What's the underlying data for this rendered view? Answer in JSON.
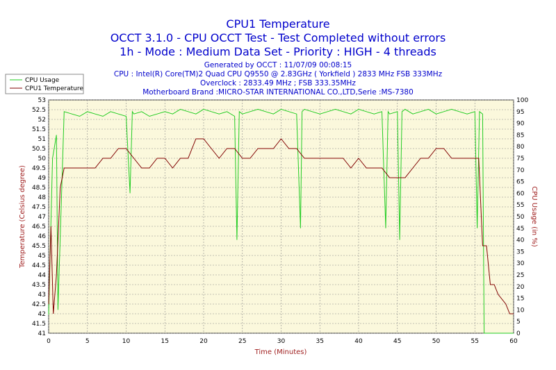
{
  "header": {
    "title": "CPU1 Temperature",
    "line2": "OCCT 3.1.0 - CPU OCCT Test - Test Completed without errors",
    "line3": "1h - Mode : Medium Data Set - Priority : HIGH - 4 threads"
  },
  "info": {
    "generated": "Generated by OCCT : 11/07/09 00:08:15",
    "cpu": "CPU : Intel(R) Core(TM)2 Quad CPU Q9550 @ 2.83GHz ( Yorkfield ) 2833 MHz FSB 333MHz",
    "overclock": "Overclock : 2833.49 MHz ; FSB 333.35MHz",
    "motherboard": "Motherboard Brand :MICRO-STAR INTERNATIONAL CO.,LTD,Serie :MS-7380"
  },
  "colors": {
    "plot_background": "#fbf8dc",
    "cpu_usage": "#22cc22",
    "cpu_temp": "#800000",
    "title": "#0000cc",
    "axis_title": "#a02020"
  },
  "chart_data": {
    "type": "line",
    "title": "CPU1 Temperature",
    "xlabel": "Time (Minutes)",
    "ylabel_left": "Temperature (Celsius degree)",
    "ylabel_right": "CPU Usage (in %)",
    "xlim": [
      0,
      60
    ],
    "ylim_left": [
      41,
      53
    ],
    "ylim_right": [
      0,
      100
    ],
    "x_ticks": [
      0,
      5,
      10,
      15,
      20,
      25,
      30,
      35,
      40,
      45,
      50,
      55,
      60
    ],
    "y_left_ticks": [
      "41",
      "41.5",
      "42",
      "42.5",
      "43",
      "43.5",
      "44",
      "44.5",
      "45",
      "45.5",
      "46",
      "46.5",
      "47",
      "47.5",
      "48",
      "48.5",
      "49",
      "49.5",
      "50",
      "50.5",
      "51",
      "51.5",
      "52",
      "52.5",
      "53"
    ],
    "y_right_ticks": [
      "0",
      "5",
      "10",
      "15",
      "20",
      "25",
      "30",
      "35",
      "40",
      "45",
      "50",
      "55",
      "60",
      "65",
      "70",
      "75",
      "80",
      "85",
      "90",
      "95",
      "100"
    ],
    "grid": true,
    "legend": "top-left",
    "series": [
      {
        "name": "CPU Usage",
        "axis": "right",
        "x": [
          0,
          0.5,
          1,
          1.2,
          2,
          3,
          4,
          5,
          6,
          7,
          8,
          9,
          10,
          10.5,
          10.8,
          11,
          12,
          13,
          14,
          15,
          16,
          17,
          18,
          19,
          20,
          21,
          22,
          23,
          24,
          24.3,
          24.6,
          25,
          26,
          27,
          28,
          29,
          30,
          31,
          32,
          32.5,
          32.7,
          33,
          34,
          35,
          36,
          37,
          38,
          39,
          40,
          41,
          42,
          43,
          43.5,
          43.8,
          44,
          45,
          45.3,
          45.6,
          46,
          47,
          48,
          49,
          50,
          51,
          52,
          53,
          54,
          55,
          55.3,
          55.6,
          56,
          56.2,
          56.5,
          57,
          58,
          59,
          60
        ],
        "y": [
          8,
          75,
          85,
          10,
          95,
          94,
          93,
          95,
          94,
          93,
          95,
          94,
          93,
          60,
          95,
          94,
          95,
          93,
          94,
          95,
          94,
          96,
          95,
          94,
          96,
          95,
          94,
          95,
          93,
          40,
          95,
          94,
          95,
          96,
          95,
          94,
          96,
          95,
          94,
          45,
          95,
          96,
          95,
          94,
          95,
          96,
          95,
          94,
          96,
          95,
          94,
          95,
          45,
          95,
          94,
          95,
          40,
          95,
          96,
          94,
          95,
          96,
          94,
          95,
          96,
          95,
          94,
          95,
          45,
          95,
          94,
          0,
          0,
          0,
          0,
          0,
          0
        ]
      },
      {
        "name": "CPU1 Temperature",
        "axis": "left",
        "x": [
          0,
          0.3,
          0.6,
          1,
          1.5,
          2,
          3,
          4,
          5,
          6,
          7,
          7.5,
          8,
          9,
          10,
          11,
          12,
          13,
          14,
          15,
          16,
          17,
          18,
          19,
          20,
          21,
          22,
          23,
          24,
          25,
          26,
          27,
          28,
          29,
          30,
          31,
          32,
          33,
          34,
          35,
          36,
          37,
          38,
          39,
          40,
          41,
          42,
          43,
          44,
          45,
          46,
          47,
          48,
          49,
          50,
          51,
          52,
          53,
          54,
          55,
          55.5,
          56,
          56.5,
          57,
          57.5,
          58,
          59,
          59.5,
          60
        ],
        "y": [
          42.5,
          46.5,
          42,
          44,
          48.5,
          49.5,
          49.5,
          49.5,
          49.5,
          49.5,
          50,
          50,
          50,
          50.5,
          50.5,
          50,
          49.5,
          49.5,
          50,
          50,
          49.5,
          50,
          50,
          51,
          51,
          50.5,
          50,
          50.5,
          50.5,
          50,
          50,
          50.5,
          50.5,
          50.5,
          51,
          50.5,
          50.5,
          50,
          50,
          50,
          50,
          50,
          50,
          49.5,
          50,
          49.5,
          49.5,
          49.5,
          49,
          49,
          49,
          49.5,
          50,
          50,
          50.5,
          50.5,
          50,
          50,
          50,
          50,
          50,
          45.5,
          45.5,
          43.5,
          43.5,
          43,
          42.5,
          42,
          42
        ]
      }
    ]
  }
}
